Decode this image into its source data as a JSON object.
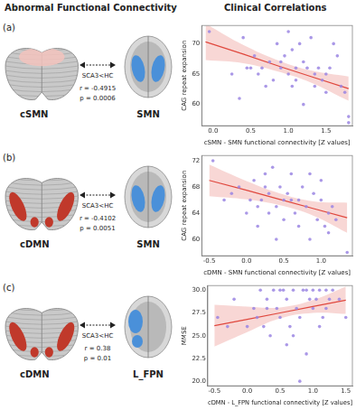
{
  "header": {
    "left_title": "Abnormal Functional Connectivity",
    "right_title": "Clinical Correlations"
  },
  "panels": [
    {
      "label": "(a)",
      "cerebellum_label": "cSMN",
      "comparison": "SCA3<HC",
      "stats": [
        "r = -0.4915",
        "p = 0.0006"
      ],
      "cortex_label": "SMN"
    },
    {
      "label": "(b)",
      "cerebellum_label": "cDMN",
      "comparison": "SCA3<HC",
      "stats": [
        "r = -0.4102",
        "p = 0.0051"
      ],
      "cortex_label": "SMN"
    },
    {
      "label": "(c)",
      "cerebellum_label": "cDMN",
      "comparison": "SCA3<HC",
      "stats": [
        "r = 0.38",
        "p = 0.01"
      ],
      "cortex_label": "L_FPN"
    }
  ],
  "chart_data": [
    {
      "type": "scatter",
      "x_label": "cSMN - SMN functional connectivity [Z values]",
      "y_label": "CAG repeat expansion",
      "xlim": [
        -0.15,
        1.85
      ],
      "xticks": [
        {
          "value": 0,
          "label": "0.0"
        },
        0.5,
        {
          "value": 1,
          "label": "1.0"
        },
        1.5
      ],
      "ylim": [
        56.5,
        73
      ],
      "yticks": [
        60,
        65,
        70
      ],
      "grid": false,
      "series": [
        {
          "type": "scatter",
          "color": "#9b86e3",
          "x": [
            -0.05,
            0.25,
            0.35,
            0.45,
            0.55,
            0.6,
            0.65,
            0.7,
            0.75,
            0.8,
            0.85,
            0.9,
            0.95,
            1.0,
            1.0,
            1.05,
            1.1,
            1.1,
            1.15,
            1.2,
            1.25,
            1.3,
            1.35,
            1.35,
            1.4,
            1.45,
            1.5,
            1.55,
            1.6,
            1.65,
            1.7,
            1.75,
            1.8,
            1.8,
            1.2,
            0.5,
            0.9,
            1.05,
            1.5,
            0.4
          ],
          "values": [
            72,
            65,
            61,
            66,
            68,
            65,
            66,
            63,
            67,
            64,
            70,
            66,
            68,
            72,
            65,
            63,
            66,
            64,
            70,
            67,
            66,
            71,
            63,
            65,
            66,
            64,
            62,
            66,
            70,
            68,
            63,
            62,
            57,
            58,
            60,
            66,
            67,
            69,
            65,
            71
          ]
        },
        {
          "type": "line",
          "color": "#e0483e",
          "x": [
            -0.1,
            0.4,
            0.9,
            1.3,
            1.8
          ],
          "values": [
            70.3,
            68.3,
            66.2,
            64.6,
            62.6
          ],
          "ci_lower": [
            67.3,
            66.8,
            65.3,
            63.6,
            60.6
          ],
          "ci_upper": [
            73.3,
            69.8,
            67.1,
            65.6,
            64.6
          ]
        }
      ]
    },
    {
      "type": "scatter",
      "x_label": "cDMN - SMN functional connectivity [Z values]",
      "y_label": "CAG repeat expansion",
      "xlim": [
        -0.6,
        1.42
      ],
      "xticks": [
        -0.5,
        {
          "value": 0,
          "label": "0.0"
        },
        0.5,
        {
          "value": 1,
          "label": "1.0"
        }
      ],
      "ylim": [
        57.5,
        72.8
      ],
      "yticks": [
        60,
        64,
        68,
        72
      ],
      "grid": false,
      "series": [
        {
          "type": "scatter",
          "color": "#9b86e3",
          "x": [
            -0.45,
            -0.2,
            -0.1,
            0.0,
            0.05,
            0.1,
            0.15,
            0.2,
            0.25,
            0.3,
            0.3,
            0.35,
            0.4,
            0.45,
            0.5,
            0.5,
            0.55,
            0.6,
            0.65,
            0.7,
            0.7,
            0.75,
            0.8,
            0.85,
            0.9,
            0.95,
            1.0,
            1.0,
            1.05,
            1.1,
            1.15,
            1.2,
            1.35,
            0.15,
            0.4,
            0.85,
            -0.3,
            0.6,
            1.1,
            0.25
          ],
          "values": [
            72,
            67,
            68,
            64,
            66,
            69,
            65,
            66,
            70,
            64,
            67,
            71,
            65,
            68,
            66,
            63,
            67,
            70,
            64,
            66,
            62,
            68,
            65,
            60,
            67,
            63,
            66,
            69,
            62,
            64,
            65,
            63,
            58,
            62,
            60,
            70,
            66,
            66,
            61,
            68
          ]
        },
        {
          "type": "line",
          "color": "#e0483e",
          "x": [
            -0.5,
            0.0,
            0.45,
            0.9,
            1.35
          ],
          "values": [
            69.0,
            67.5,
            66.1,
            64.7,
            63.3
          ],
          "ci_lower": [
            66.6,
            66.1,
            65.2,
            63.6,
            61.0
          ],
          "ci_upper": [
            71.4,
            68.9,
            67.0,
            65.8,
            65.6
          ]
        }
      ]
    },
    {
      "type": "scatter",
      "x_label": "cDMN - L_FPN functional connectivity [Z values]",
      "y_label": "MMSE",
      "xlim": [
        -0.6,
        1.6
      ],
      "xticks": [
        -0.5,
        {
          "value": 0,
          "label": "0.0"
        },
        0.5,
        {
          "value": 1,
          "label": "1.0"
        },
        1.5
      ],
      "ylim": [
        19.5,
        30.5
      ],
      "yticks": [
        {
          "value": 20,
          "label": "20.0"
        },
        22.5,
        {
          "value": 25,
          "label": "25.0"
        },
        27.5,
        {
          "value": 30,
          "label": "30.0"
        }
      ],
      "grid": false,
      "series": [
        {
          "type": "scatter",
          "color": "#9b86e3",
          "x": [
            -0.45,
            -0.2,
            0.0,
            0.1,
            0.2,
            0.25,
            0.3,
            0.35,
            0.4,
            0.45,
            0.5,
            0.55,
            0.6,
            0.65,
            0.7,
            0.75,
            0.8,
            0.85,
            0.9,
            0.95,
            1.0,
            1.0,
            1.05,
            1.1,
            1.15,
            1.2,
            1.25,
            1.3,
            1.4,
            1.5,
            0.8,
            0.9,
            0.6,
            0.3,
            1.1,
            0.15,
            0.7,
            0.5,
            1.2,
            -0.3
          ],
          "values": [
            27,
            29,
            26,
            28,
            30,
            26,
            29,
            25,
            30,
            28,
            27,
            30,
            29,
            26,
            30,
            28,
            27,
            30,
            30,
            29,
            30,
            28,
            29,
            30,
            27,
            30,
            29,
            30,
            29,
            27,
            20,
            23,
            24,
            28,
            26,
            27,
            25,
            30,
            28,
            26
          ]
        },
        {
          "type": "line",
          "color": "#e0483e",
          "x": [
            -0.5,
            0.0,
            0.5,
            1.0,
            1.5
          ],
          "values": [
            26.1,
            26.8,
            27.5,
            28.2,
            28.9
          ],
          "ci_lower": [
            23.8,
            25.4,
            26.9,
            27.5,
            27.4
          ],
          "ci_upper": [
            28.4,
            28.2,
            28.1,
            28.9,
            30.4
          ]
        }
      ]
    }
  ]
}
